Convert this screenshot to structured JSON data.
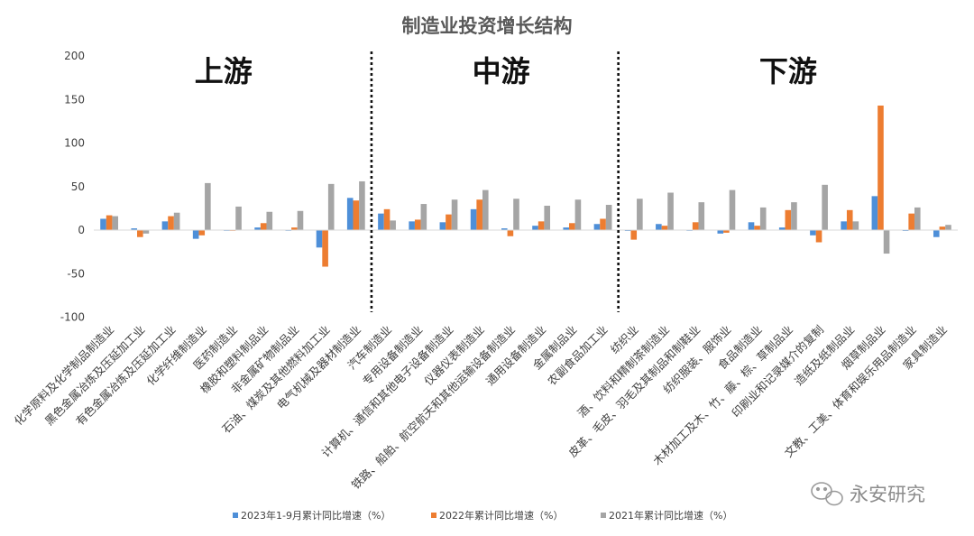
{
  "chart_data": {
    "type": "bar",
    "title": "制造业投资增长结构",
    "ylim": [
      -100,
      200
    ],
    "yticks": [
      -100,
      -50,
      0,
      50,
      100,
      150,
      200
    ],
    "grid": false,
    "legend_position": "bottom",
    "categories": [
      "化学原料及化学制品制造业",
      "黑色金属冶炼及压延加工业",
      "有色金属冶炼及压延加工业",
      "化学纤维制造业",
      "医药制造业",
      "橡胶和塑料制品业",
      "非金属矿物制品业",
      "石油、煤炭及其他燃料加工业",
      "电气机械及器材制造业",
      "汽车制造业",
      "专用设备制造业",
      "计算机、通信和其他电子设备制造业",
      "仪器仪表制造业",
      "铁路、船舶、航空航天和其他运输设备制造业",
      "通用设备制造业",
      "金属制品业",
      "农副食品加工业",
      "纺织业",
      "酒、饮料和精制茶制造业",
      "皮革、毛皮、羽毛及其制品和制鞋业",
      "纺织服装、服饰业",
      "食品制造业",
      "木材加工及木、竹、藤、棕、草制品业",
      "印刷业和记录媒介的复制",
      "造纸及纸制品业",
      "烟草制品业",
      "文教、工美、体育和娱乐用品制造业",
      "家具制造业"
    ],
    "series": [
      {
        "name": "2023年1-9月累计同比增速（%）",
        "color": "#4e8fd8",
        "values": [
          13,
          2,
          10,
          -10,
          0,
          3,
          0,
          -20,
          37,
          19,
          10,
          9,
          24,
          2,
          5,
          3,
          7,
          -1,
          7,
          0,
          -4,
          9,
          3,
          -6,
          10,
          39,
          -1,
          -8
        ]
      },
      {
        "name": "2022年累计同比增速（%）",
        "color": "#ed7d31",
        "values": [
          17,
          -8,
          16,
          -6,
          0,
          8,
          3,
          -42,
          34,
          24,
          12,
          18,
          35,
          -7,
          10,
          8,
          13,
          -11,
          5,
          9,
          -3,
          5,
          23,
          -14,
          23,
          143,
          19,
          4
        ]
      },
      {
        "name": "2021年累计同比增速（%）",
        "color": "#a5a5a5",
        "values": [
          16,
          -4,
          20,
          54,
          27,
          21,
          22,
          53,
          56,
          11,
          30,
          35,
          46,
          36,
          28,
          35,
          29,
          36,
          43,
          32,
          46,
          26,
          32,
          52,
          10,
          -27,
          26,
          6
        ]
      }
    ],
    "annotations": [
      "上游",
      "中游",
      "下游"
    ]
  },
  "watermark": "永安研究"
}
